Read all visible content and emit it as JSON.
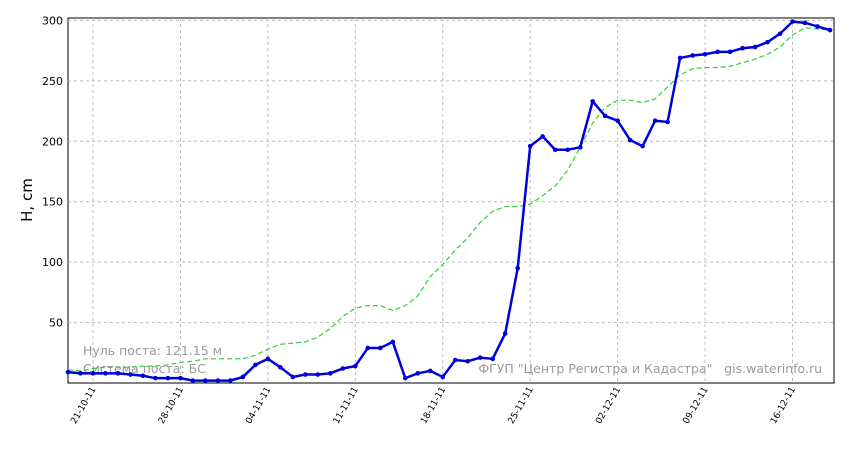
{
  "chart_data": {
    "type": "line",
    "y_label": "H, cm",
    "annotations": [
      "Нуль поста: 121.15 м",
      "Система поста: БС",
      "ФГУП \"Центр Регистра и Кадастра\"   gis.waterinfo.ru"
    ],
    "x": [
      "19-10-11",
      "20-10-11",
      "21-10-11",
      "22-10-11",
      "23-10-11",
      "24-10-11",
      "25-10-11",
      "26-10-11",
      "27-10-11",
      "28-10-11",
      "29-10-11",
      "30-10-11",
      "31-10-11",
      "01-11-11",
      "02-11-11",
      "03-11-11",
      "04-11-11",
      "05-11-11",
      "06-11-11",
      "07-11-11",
      "08-11-11",
      "09-11-11",
      "10-11-11",
      "11-11-11",
      "12-11-11",
      "13-11-11",
      "14-11-11",
      "15-11-11",
      "16-11-11",
      "17-11-11",
      "18-11-11",
      "19-11-11",
      "20-11-11",
      "21-11-11",
      "22-11-11",
      "23-11-11",
      "24-11-11",
      "25-11-11",
      "26-11-11",
      "27-11-11",
      "28-11-11",
      "29-11-11",
      "30-11-11",
      "01-12-11",
      "02-12-11",
      "03-12-11",
      "04-12-11",
      "05-12-11",
      "06-12-11",
      "07-12-11",
      "08-12-11",
      "09-12-11",
      "10-12-11",
      "11-12-11",
      "12-12-11",
      "13-12-11",
      "14-12-11",
      "15-12-11",
      "16-12-11",
      "17-12-11",
      "18-12-11",
      "19-12-11"
    ],
    "series": [
      {
        "color": "#32cd32",
        "style": "dashed",
        "markers": false,
        "values": [
          11,
          10,
          12,
          13,
          13,
          13,
          14,
          14,
          15,
          17,
          18,
          20,
          20,
          20,
          20,
          23,
          28,
          32,
          33,
          34,
          38,
          45,
          55,
          62,
          64,
          64,
          60,
          64,
          72,
          88,
          98,
          110,
          120,
          133,
          142,
          146,
          146,
          148,
          155,
          163,
          176,
          195,
          215,
          228,
          234,
          234,
          232,
          235,
          245,
          255,
          260,
          261,
          261,
          262,
          265,
          268,
          272,
          278,
          288,
          294,
          293,
          292
        ]
      },
      {
        "color": "#0000dd",
        "style": "solid",
        "markers": true,
        "values": [
          9,
          8,
          8,
          8,
          8,
          7,
          6,
          4,
          4,
          4,
          2,
          2,
          2,
          2,
          5,
          15,
          20,
          13,
          5,
          7,
          7,
          8,
          12,
          14,
          29,
          29,
          34,
          4,
          8,
          10,
          5,
          19,
          18,
          21,
          20,
          41,
          95,
          196,
          204,
          193,
          193,
          195,
          233,
          221,
          217,
          201,
          196,
          217,
          216,
          269,
          271,
          272,
          274,
          274,
          277,
          278,
          282,
          289,
          299,
          298,
          295,
          292
        ]
      }
    ],
    "xlim": [
      "19-10-11",
      "19-12-11"
    ],
    "xticks": [
      "21-10-11",
      "28-10-11",
      "04-11-11",
      "11-11-11",
      "18-11-11",
      "25-11-11",
      "02-12-11",
      "09-12-11",
      "16-12-11"
    ],
    "ylim": [
      0,
      302
    ],
    "yticks": [
      50,
      100,
      150,
      200,
      250,
      300
    ],
    "grid": true
  }
}
